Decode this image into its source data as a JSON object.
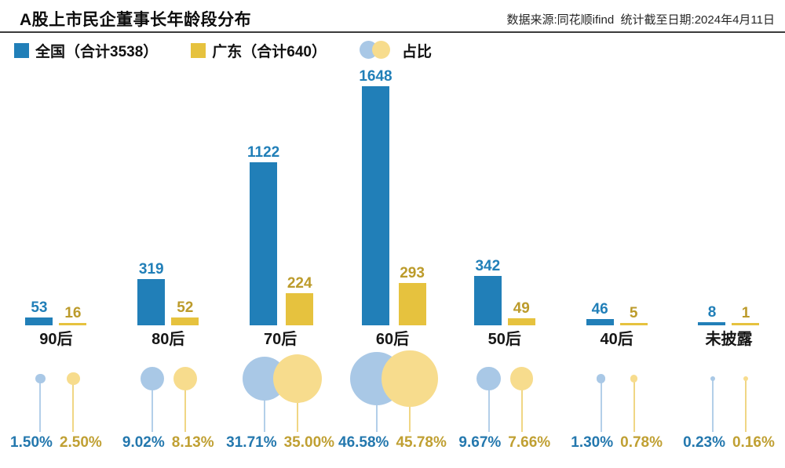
{
  "header": {
    "title": "A股上市民企董事长年龄段分布",
    "source": "数据来源:同花顺ifind  统计截至日期:2024年4月11日"
  },
  "legend": {
    "national_label": "全国（合计3538）",
    "guangdong_label": "广东（合计640）",
    "ratio_label": "占比"
  },
  "colors": {
    "national_bar": "#217fb8",
    "national_value_text": "#217fb8",
    "guangdong_bar": "#e6c23e",
    "guangdong_value_text": "#bc9b2b",
    "bubble_blue": "#a9c8e6",
    "bubble_blue_stem": "#b3cfe9",
    "bubble_yellow": "#f7dc8d",
    "bubble_yellow_stem": "#f0d684",
    "pct_blue_text": "#2478ae",
    "pct_yellow_text": "#c0a033",
    "category_text": "#161616"
  },
  "chart_data": {
    "type": "bar",
    "title": "A股上市民企董事长年龄段分布",
    "subtitle": "数据来源:同花顺ifind  统计截至日期:2024年4月11日",
    "categories": [
      "90后",
      "80后",
      "70后",
      "60后",
      "50后",
      "40后",
      "未披露"
    ],
    "series": [
      {
        "name": "全国（合计3538）",
        "total": 3538,
        "values": [
          53,
          319,
          1122,
          1648,
          342,
          46,
          8
        ],
        "pct": [
          1.5,
          9.02,
          31.71,
          46.58,
          9.67,
          1.3,
          0.23
        ],
        "pct_labels": [
          "1.50%",
          "9.02%",
          "31.71%",
          "46.58%",
          "9.67%",
          "1.30%",
          "0.23%"
        ]
      },
      {
        "name": "广东（合计640）",
        "total": 640,
        "values": [
          16,
          52,
          224,
          293,
          49,
          5,
          1
        ],
        "pct": [
          2.5,
          8.13,
          35.0,
          45.78,
          7.66,
          0.78,
          0.16
        ],
        "pct_labels": [
          "2.50%",
          "8.13%",
          "35.00%",
          "45.78%",
          "7.66%",
          "0.78%",
          "0.16%"
        ]
      }
    ],
    "bubble_row_name": "占比",
    "legend_position": "top",
    "grid": false,
    "value_labels": "above-bars",
    "ylim": [
      0,
      1648
    ]
  }
}
